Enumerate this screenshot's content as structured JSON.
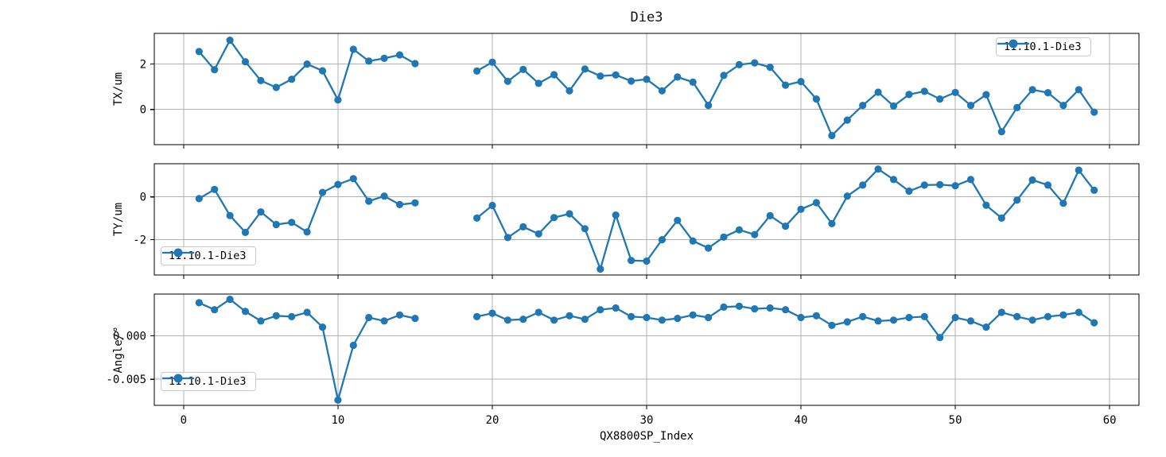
{
  "figure": {
    "title": "Die3",
    "xlabel": "QX8800SP_Index",
    "series_label": "11.10.1-Die3",
    "colors": {
      "line": "#1f77b4",
      "grid": "#b0b0b0",
      "frame": "#000000"
    },
    "xticks": [
      0,
      10,
      20,
      30,
      40,
      50,
      60
    ],
    "xlim": [
      -1.9,
      61.9
    ]
  },
  "chart_data": [
    {
      "type": "line",
      "name": "TX",
      "title": "Die3",
      "ylabel": "TX/um",
      "legend": "11.10.1-Die3",
      "legend_position": "upper right",
      "grid": true,
      "yticks": [
        0,
        2
      ],
      "ytick_labels": [
        "0",
        "2"
      ],
      "ylim": [
        -1.55,
        3.35
      ],
      "x": [
        1,
        2,
        3,
        4,
        5,
        6,
        7,
        8,
        9,
        10,
        11,
        12,
        13,
        14,
        15,
        19,
        20,
        21,
        22,
        23,
        24,
        25,
        26,
        27,
        28,
        29,
        30,
        31,
        32,
        33,
        34,
        35,
        36,
        37,
        38,
        39,
        40,
        41,
        42,
        43,
        44,
        45,
        46,
        47,
        48,
        49,
        50,
        51,
        52,
        53,
        54,
        55,
        56,
        57,
        58,
        59
      ],
      "y": [
        2.55,
        1.75,
        3.05,
        2.1,
        1.27,
        0.97,
        1.33,
        2.0,
        1.7,
        0.42,
        2.65,
        2.13,
        2.25,
        2.4,
        2.02,
        1.69,
        2.08,
        1.24,
        1.76,
        1.15,
        1.53,
        0.82,
        1.78,
        1.47,
        1.52,
        1.25,
        1.33,
        0.82,
        1.43,
        1.2,
        0.18,
        1.5,
        1.97,
        2.05,
        1.86,
        1.07,
        1.23,
        0.46,
        -1.15,
        -0.47,
        0.18,
        0.76,
        0.15,
        0.66,
        0.8,
        0.46,
        0.75,
        0.18,
        0.65,
        -0.98,
        0.08,
        0.87,
        0.74,
        0.18,
        0.87,
        -0.12
      ]
    },
    {
      "type": "line",
      "name": "TY",
      "title": "Die3",
      "ylabel": "TY/um",
      "legend": "11.10.1-Die3",
      "legend_position": "lower left",
      "grid": true,
      "yticks": [
        -2,
        0
      ],
      "ytick_labels": [
        "-2",
        "0"
      ],
      "ylim": [
        -3.65,
        1.55
      ],
      "x": [
        1,
        2,
        3,
        4,
        5,
        6,
        7,
        8,
        9,
        10,
        11,
        12,
        13,
        14,
        15,
        19,
        20,
        21,
        22,
        23,
        24,
        25,
        26,
        27,
        28,
        29,
        30,
        31,
        32,
        33,
        34,
        35,
        36,
        37,
        38,
        39,
        40,
        41,
        42,
        43,
        44,
        45,
        46,
        47,
        48,
        49,
        50,
        51,
        52,
        53,
        54,
        55,
        56,
        57,
        58,
        59
      ],
      "y": [
        -0.08,
        0.35,
        -0.87,
        -1.66,
        -0.7,
        -1.29,
        -1.19,
        -1.64,
        0.21,
        0.58,
        0.85,
        -0.2,
        0.04,
        -0.36,
        -0.28,
        -0.99,
        -0.4,
        -1.9,
        -1.4,
        -1.73,
        -0.97,
        -0.79,
        -1.49,
        -3.37,
        -0.85,
        -2.97,
        -3.0,
        -2.0,
        -1.1,
        -2.06,
        -2.39,
        -1.88,
        -1.54,
        -1.76,
        -0.88,
        -1.37,
        -0.58,
        -0.27,
        -1.25,
        0.04,
        0.55,
        1.3,
        0.81,
        0.27,
        0.55,
        0.57,
        0.52,
        0.81,
        -0.39,
        -0.99,
        -0.15,
        0.79,
        0.55,
        -0.3,
        1.25,
        0.31
      ]
    },
    {
      "type": "line",
      "name": "Angle",
      "title": "Die3",
      "ylabel": "Angle/°",
      "legend": "11.10.1-Die3",
      "legend_position": "lower left",
      "grid": true,
      "yticks": [
        -0.005,
        0
      ],
      "ytick_labels": [
        "-0.005",
        "0.000"
      ],
      "ylim": [
        -0.008,
        0.0048
      ],
      "x": [
        1,
        2,
        3,
        4,
        5,
        6,
        7,
        8,
        9,
        10,
        11,
        12,
        13,
        14,
        15,
        19,
        20,
        21,
        22,
        23,
        24,
        25,
        26,
        27,
        28,
        29,
        30,
        31,
        32,
        33,
        34,
        35,
        36,
        37,
        38,
        39,
        40,
        41,
        42,
        43,
        44,
        45,
        46,
        47,
        48,
        49,
        50,
        51,
        52,
        53,
        54,
        55,
        56,
        57,
        58,
        59
      ],
      "y": [
        0.0038,
        0.003,
        0.0042,
        0.0028,
        0.0017,
        0.0023,
        0.0022,
        0.0027,
        0.001,
        -0.0074,
        -0.0011,
        0.0021,
        0.0017,
        0.0024,
        0.002,
        0.0022,
        0.0026,
        0.0018,
        0.0019,
        0.0027,
        0.0018,
        0.0023,
        0.0019,
        0.003,
        0.0032,
        0.0022,
        0.0021,
        0.0018,
        0.002,
        0.0024,
        0.0021,
        0.0033,
        0.0034,
        0.0031,
        0.0032,
        0.003,
        0.0021,
        0.0023,
        0.0012,
        0.0016,
        0.0022,
        0.0017,
        0.0018,
        0.0021,
        0.0022,
        -0.0002,
        0.0021,
        0.0017,
        0.001,
        0.0027,
        0.0022,
        0.0018,
        0.0022,
        0.0024,
        0.0027,
        0.0015
      ]
    }
  ]
}
